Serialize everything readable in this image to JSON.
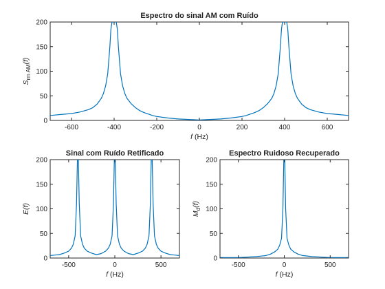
{
  "colors": {
    "series": "#0072BD",
    "axis": "#262626",
    "background": "#ffffff"
  },
  "chart_data": [
    {
      "type": "line",
      "title": "Espectro do sinal AM com Ruído",
      "xlabel_italic": "f",
      "xlabel_unit": " (Hz)",
      "ylabel_main": "S",
      "ylabel_sub": "rm AM",
      "ylabel_tail": "(f)",
      "xlim": [
        -700,
        700
      ],
      "ylim": [
        0,
        200
      ],
      "xticks": [
        -600,
        -400,
        -200,
        0,
        200,
        400,
        600
      ],
      "yticks": [
        0,
        50,
        100,
        150,
        200
      ],
      "grid": false,
      "series": [
        {
          "x": [
            -700,
            -650,
            -600,
            -560,
            -520,
            -500,
            -480,
            -460,
            -450,
            -440,
            -430,
            -420,
            -415,
            -410,
            -405,
            -400,
            -395,
            -390,
            -385,
            -380,
            -370,
            -360,
            -350,
            -340,
            -320,
            -300,
            -280,
            -260,
            -240,
            -220,
            -200,
            -150,
            -100,
            -50,
            0,
            50,
            100,
            150,
            200,
            220,
            240,
            260,
            280,
            300,
            320,
            340,
            350,
            360,
            370,
            380,
            385,
            390,
            395,
            400,
            405,
            410,
            415,
            420,
            430,
            440,
            450,
            460,
            480,
            500,
            520,
            560,
            600,
            650,
            700
          ],
          "y": [
            10,
            12,
            14,
            17,
            22,
            26,
            33,
            45,
            55,
            70,
            95,
            150,
            185,
            200,
            200,
            200,
            200,
            200,
            185,
            150,
            95,
            70,
            55,
            45,
            34,
            26,
            20,
            16,
            13,
            10,
            8,
            5,
            3,
            2,
            1,
            2,
            3,
            5,
            8,
            10,
            13,
            16,
            20,
            26,
            34,
            45,
            55,
            70,
            95,
            150,
            185,
            200,
            200,
            200,
            200,
            200,
            185,
            150,
            95,
            70,
            55,
            45,
            33,
            26,
            22,
            17,
            14,
            12,
            10
          ]
        }
      ]
    },
    {
      "type": "line",
      "title": "Sinal com Ruído Retificado",
      "xlabel_italic": "f",
      "xlabel_unit": " (Hz)",
      "ylabel_main": "E",
      "ylabel_sub": "",
      "ylabel_tail": "(f)",
      "xlim": [
        -700,
        700
      ],
      "ylim": [
        0,
        200
      ],
      "xticks": [
        -500,
        0,
        500
      ],
      "yticks": [
        0,
        50,
        100,
        150,
        200
      ],
      "grid": false,
      "series": [
        {
          "x": [
            -700,
            -650,
            -600,
            -550,
            -500,
            -470,
            -450,
            -430,
            -415,
            -405,
            -400,
            -395,
            -385,
            -370,
            -350,
            -330,
            -300,
            -250,
            -200,
            -150,
            -100,
            -70,
            -50,
            -30,
            -15,
            -5,
            0,
            5,
            15,
            30,
            50,
            70,
            100,
            150,
            200,
            250,
            300,
            330,
            350,
            370,
            385,
            395,
            400,
            405,
            415,
            430,
            450,
            470,
            500,
            550,
            600,
            650,
            700
          ],
          "y": [
            5,
            6,
            7,
            10,
            14,
            20,
            28,
            45,
            110,
            200,
            200,
            200,
            110,
            45,
            28,
            20,
            14,
            10,
            7,
            9,
            14,
            20,
            28,
            45,
            110,
            200,
            200,
            200,
            110,
            45,
            28,
            20,
            14,
            9,
            7,
            10,
            14,
            20,
            28,
            45,
            110,
            200,
            200,
            200,
            110,
            45,
            28,
            20,
            14,
            10,
            7,
            6,
            5
          ]
        }
      ]
    },
    {
      "type": "line",
      "title": "Espectro Ruidoso Recuperado",
      "xlabel_italic": "f",
      "xlabel_unit": " (Hz)",
      "ylabel_main": "M",
      "ylabel_sub": "d",
      "ylabel_tail": "(f)",
      "xlim": [
        -700,
        700
      ],
      "ylim": [
        0,
        200
      ],
      "xticks": [
        -500,
        0,
        500
      ],
      "yticks": [
        0,
        50,
        100,
        150,
        200
      ],
      "grid": false,
      "series": [
        {
          "x": [
            -700,
            -600,
            -500,
            -400,
            -300,
            -200,
            -150,
            -100,
            -70,
            -50,
            -30,
            -15,
            -5,
            0,
            5,
            15,
            30,
            50,
            70,
            100,
            150,
            200,
            300,
            400,
            500,
            600,
            700
          ],
          "y": [
            1,
            1,
            1,
            2,
            3,
            5,
            8,
            13,
            18,
            26,
            40,
            100,
            200,
            200,
            200,
            100,
            40,
            26,
            18,
            13,
            8,
            5,
            3,
            2,
            1,
            1,
            1
          ]
        }
      ]
    }
  ]
}
